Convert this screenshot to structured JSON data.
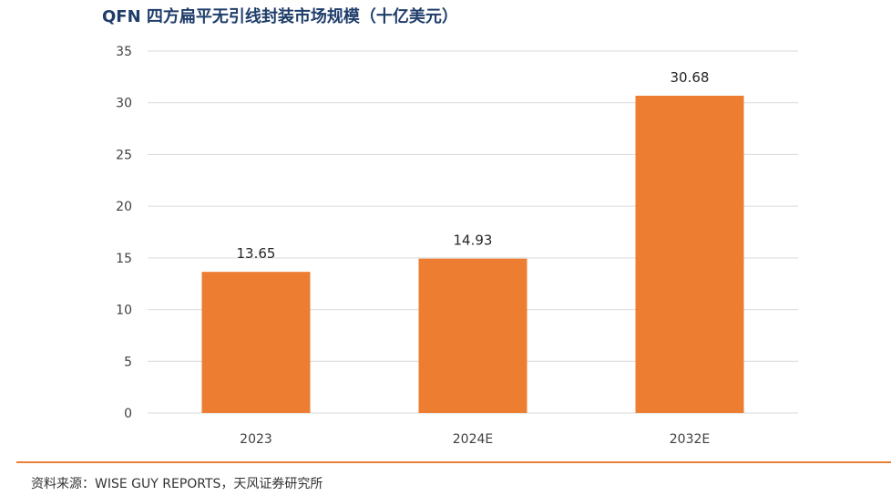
{
  "title": "QFN 四方扁平无引线封装市场规模（十亿美元）",
  "source": "资料来源：WISE  GUY REPORTS，天风证券研究所",
  "colors": {
    "bar": "#ED7D31",
    "accent_line": "#E9803A",
    "title": "#1F3D6B",
    "grid": "#D9D9D9"
  },
  "chart_data": {
    "type": "bar",
    "categories": [
      "2023",
      "2024E",
      "2032E"
    ],
    "values": [
      13.65,
      14.93,
      30.68
    ],
    "data_labels": [
      "13.65",
      "14.93",
      "30.68"
    ],
    "ylim": [
      0,
      35
    ],
    "yticks": [
      0,
      5,
      10,
      15,
      20,
      25,
      30,
      35
    ],
    "grid": true,
    "legend": "none"
  }
}
